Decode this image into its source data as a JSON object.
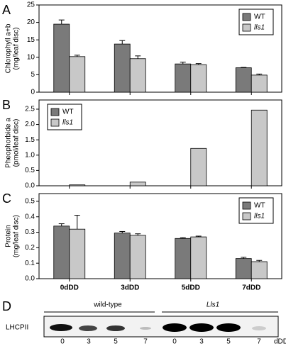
{
  "chart_data": [
    {
      "type": "bar",
      "label": "A",
      "ylabel": [
        "Chlorophyll a+b",
        "(mg/leaf disc)"
      ],
      "categories": [
        null,
        null,
        null,
        null
      ],
      "series": [
        {
          "name": "WT",
          "color": "#7a7a7a",
          "values": [
            19.5,
            13.8,
            8.1,
            7.0
          ],
          "errors": [
            1.2,
            1.0,
            0.5,
            0.1
          ]
        },
        {
          "name": "lls1",
          "color": "#c8c8c8",
          "values": [
            10.2,
            9.6,
            7.9,
            4.9
          ],
          "errors": [
            0.4,
            0.8,
            0.3,
            0.3
          ]
        }
      ],
      "ylim": [
        0,
        25
      ],
      "yticks": [
        0,
        5,
        10,
        15,
        20,
        25
      ],
      "legend": "upper right"
    },
    {
      "type": "bar",
      "label": "B",
      "ylabel": [
        "Pheophorbide a",
        "(pmol/leaf disc)"
      ],
      "categories": [
        null,
        null,
        null,
        null
      ],
      "series": [
        {
          "name": "WT",
          "color": "#7a7a7a",
          "values": [
            null,
            null,
            null,
            null
          ]
        },
        {
          "name": "lls1",
          "color": "#c8c8c8",
          "values": [
            0.03,
            0.12,
            1.22,
            2.47
          ]
        }
      ],
      "ylim": [
        0,
        2.8
      ],
      "yticks": [
        {
          "value": 0,
          "label": "0.0"
        },
        0.5,
        {
          "value": 1,
          "label": "1.0"
        },
        1.5,
        {
          "value": 2,
          "label": "2.0"
        },
        2.5
      ],
      "legend": "upper left"
    },
    {
      "type": "bar",
      "label": "C",
      "ylabel": [
        "Protein",
        "(mg/leaf disc)"
      ],
      "categories": [
        "0dDD",
        "3dDD",
        "5dDD",
        "7dDD"
      ],
      "series": [
        {
          "name": "WT",
          "color": "#7a7a7a",
          "values": [
            0.34,
            0.295,
            0.26,
            0.13
          ],
          "errors": [
            0.015,
            0.01,
            0.005,
            0.008
          ]
        },
        {
          "name": "lls1",
          "color": "#c8c8c8",
          "values": [
            0.32,
            0.28,
            0.27,
            0.11
          ],
          "errors": [
            0.09,
            0.01,
            0.005,
            0.008
          ]
        }
      ],
      "ylim": [
        0,
        0.55
      ],
      "yticks": [
        {
          "value": 0,
          "label": "0.0"
        },
        0.1,
        0.2,
        0.3,
        0.4,
        0.5
      ],
      "legend": "upper right"
    }
  ],
  "blot": {
    "label": "D",
    "row_label": "LHCPII",
    "groups": [
      "wild-type",
      "Lls1"
    ],
    "lanes": [
      "0",
      "3",
      "5",
      "7",
      "0",
      "3",
      "5",
      "7"
    ],
    "unit": "dDD"
  }
}
